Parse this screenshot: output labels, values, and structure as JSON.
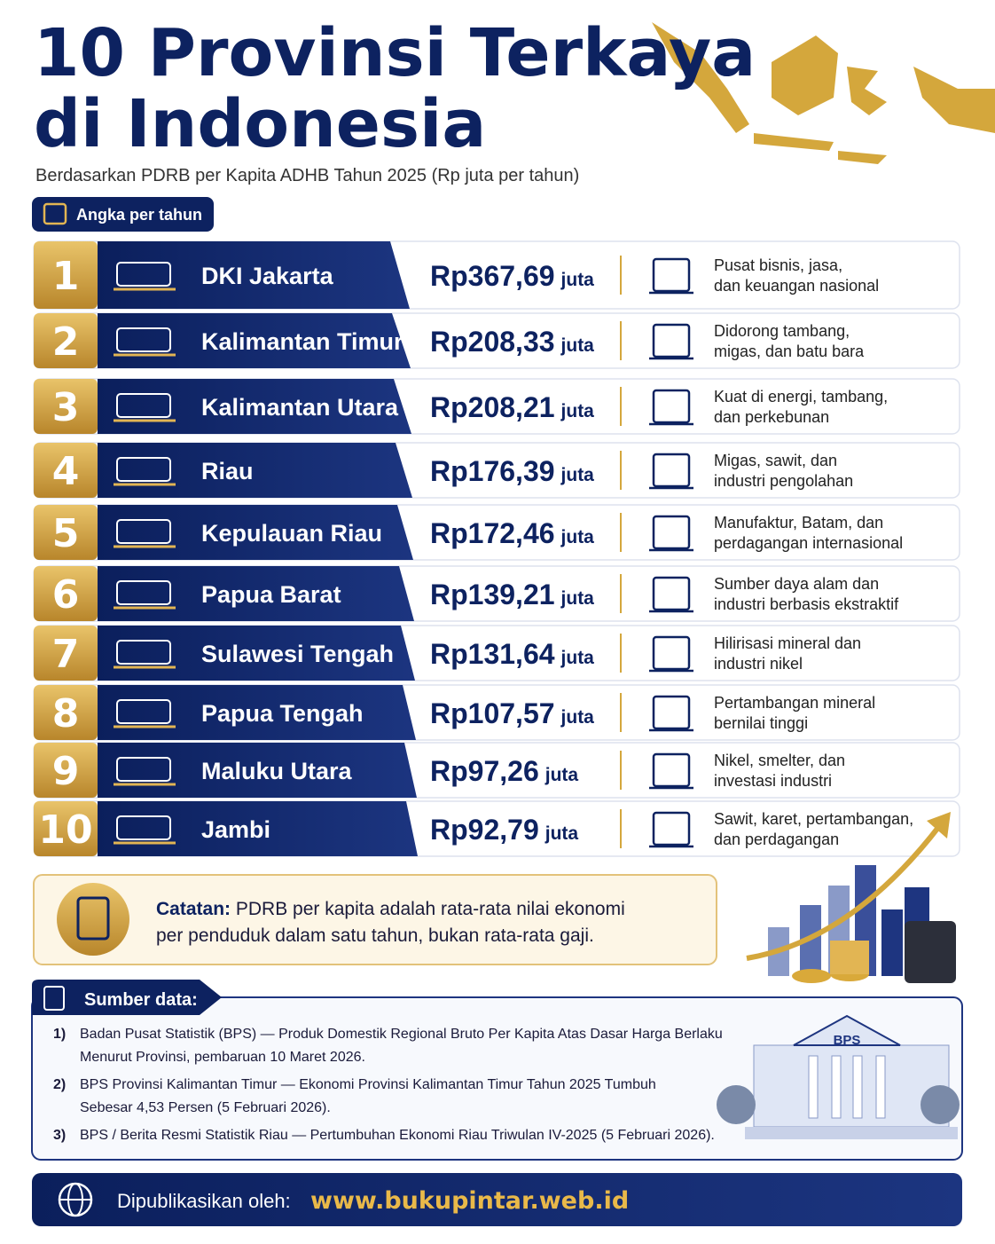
{
  "header": {
    "title": [
      "10 Provinsi Terkaya",
      "di Indonesia"
    ],
    "subtitle": "Berdasarkan PDRB per Kapita ADHB Tahun 2025 (Rp juta per tahun)",
    "badge": "Angka per tahun"
  },
  "rows": [
    {
      "rank": "1",
      "province": "DKI Jakarta",
      "value": "Rp367,69",
      "unit": "juta",
      "description": [
        "Pusat bisnis, jasa,",
        "dan keuangan nasional"
      ]
    },
    {
      "rank": "2",
      "province": "Kalimantan Timur",
      "value": "Rp208,33",
      "unit": "juta",
      "description": [
        "Didorong tambang,",
        "migas, dan batu bara"
      ]
    },
    {
      "rank": "3",
      "province": "Kalimantan Utara",
      "value": "Rp208,21",
      "unit": "juta",
      "description": [
        "Kuat di energi, tambang,",
        "dan perkebunan"
      ]
    },
    {
      "rank": "4",
      "province": "Riau",
      "value": "Rp176,39",
      "unit": "juta",
      "description": [
        "Migas, sawit, dan",
        "industri pengolahan"
      ]
    },
    {
      "rank": "5",
      "province": "Kepulauan Riau",
      "value": "Rp172,46",
      "unit": "juta",
      "description": [
        "Manufaktur, Batam, dan",
        "perdagangan internasional"
      ]
    },
    {
      "rank": "6",
      "province": "Papua Barat",
      "value": "Rp139,21",
      "unit": "juta",
      "description": [
        "Sumber daya alam dan",
        "industri berbasis ekstraktif"
      ]
    },
    {
      "rank": "7",
      "province": "Sulawesi Tengah",
      "value": "Rp131,64",
      "unit": "juta",
      "description": [
        "Hilirisasi mineral dan",
        "industri nikel"
      ]
    },
    {
      "rank": "8",
      "province": "Papua Tengah",
      "value": "Rp107,57",
      "unit": "juta",
      "description": [
        "Pertambangan mineral",
        "bernilai tinggi"
      ]
    },
    {
      "rank": "9",
      "province": "Maluku Utara",
      "value": "Rp97,26",
      "unit": "juta",
      "description": [
        "Nikel, smelter, dan",
        "investasi industri"
      ]
    },
    {
      "rank": "10",
      "province": "Jambi",
      "value": "Rp92,79",
      "unit": "juta",
      "description": [
        "Sawit, karet, pertambangan,",
        "dan perdagangan"
      ]
    }
  ],
  "note": {
    "label": "Catatan:",
    "text": [
      "PDRB per kapita adalah rata-rata nilai ekonomi",
      "per penduduk dalam satu tahun, bukan rata-rata gaji."
    ]
  },
  "sources": {
    "title": "Sumber data:",
    "items": [
      {
        "number": "1)",
        "lines": [
          "Badan Pusat Statistik (BPS) — Produk Domestik Regional Bruto Per Kapita Atas Dasar Harga Berlaku",
          "Menurut Provinsi, pembaruan 10 Maret 2026."
        ]
      },
      {
        "number": "2)",
        "lines": [
          "BPS Provinsi Kalimantan Timur — Ekonomi Provinsi Kalimantan Timur Tahun 2025 Tumbuh",
          "Sebesar 4,53 Persen (5 Februari 2026)."
        ]
      },
      {
        "number": "3)",
        "lines": [
          "BPS / Berita Resmi Statistik Riau — Pertumbuhan Ekonomi Riau Triwulan IV-2025 (5 Februari 2026)."
        ]
      }
    ],
    "building_label": "BPS"
  },
  "footer": {
    "label": "Dipublikasikan oleh:",
    "url": "www.bukupintar.web.id"
  }
}
